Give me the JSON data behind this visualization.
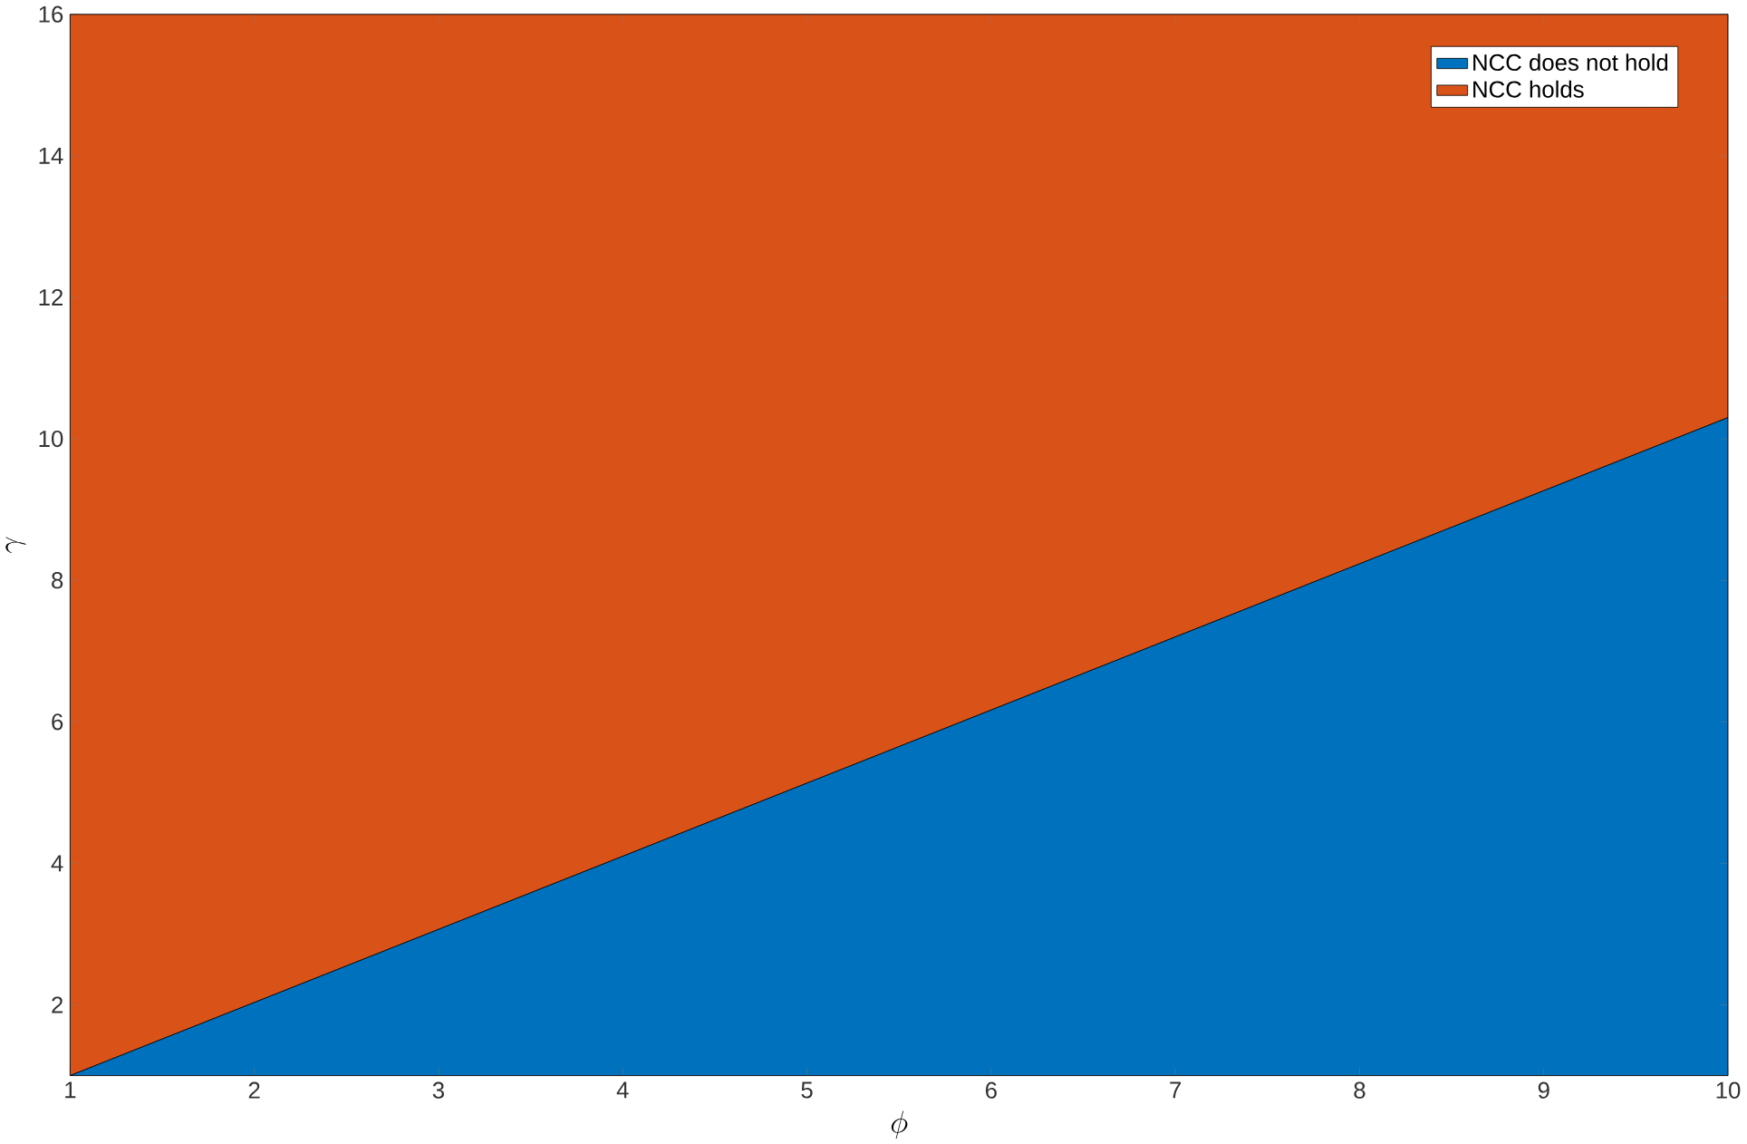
{
  "chart_data": {
    "type": "area",
    "stacked": true,
    "x": [
      1,
      10
    ],
    "series": [
      {
        "name": "NCC does not hold",
        "color": "#0072bd",
        "values": [
          1,
          10.3
        ]
      },
      {
        "name": "NCC holds",
        "color": "#d95319",
        "values": [
          15,
          5.7
        ]
      }
    ],
    "xlabel": "\\phi",
    "ylabel": "\\gamma",
    "xlim": [
      1,
      10
    ],
    "ylim": [
      1,
      16
    ],
    "xticks": [
      1,
      2,
      3,
      4,
      5,
      6,
      7,
      8,
      9,
      10
    ],
    "yticks": [
      2,
      4,
      6,
      8,
      10,
      12,
      14,
      16
    ],
    "legend": "top right",
    "grid": false
  }
}
